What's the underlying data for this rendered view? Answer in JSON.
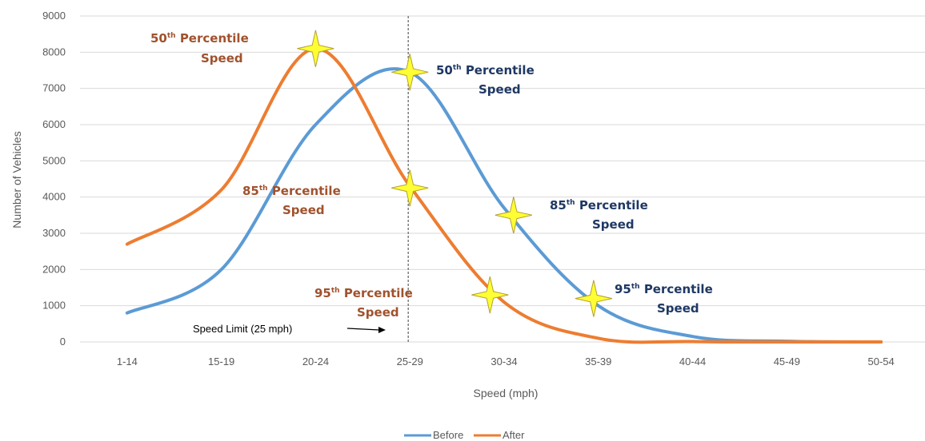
{
  "chart_data": {
    "type": "line",
    "title": "",
    "xlabel": "Speed (mph)",
    "ylabel": "Number of Vehicles",
    "categories": [
      "1-14",
      "15-19",
      "20-24",
      "25-29",
      "30-34",
      "35-39",
      "40-44",
      "45-49",
      "50-54"
    ],
    "ylim": [
      0,
      9000
    ],
    "yticks": [
      0,
      1000,
      2000,
      3000,
      4000,
      5000,
      6000,
      7000,
      8000,
      9000
    ],
    "grid": true,
    "legend": "bottom",
    "series": [
      {
        "name": "Before",
        "color": "#5b9bd5",
        "values": [
          800,
          2000,
          6000,
          7450,
          3700,
          1000,
          150,
          20,
          0
        ]
      },
      {
        "name": "After",
        "color": "#ed7d31",
        "values": [
          2700,
          4200,
          8100,
          4300,
          1100,
          100,
          10,
          0,
          0
        ]
      }
    ],
    "reference_line": {
      "label": "Speed Limit (25 mph)",
      "category": "25-29",
      "style": "dashed",
      "color": "#7f7f7f"
    },
    "markers": [
      {
        "series": "After",
        "label": "50th Percentile Speed",
        "x": 2.0,
        "y": 8100
      },
      {
        "series": "After",
        "label": "85th Percentile Speed",
        "x": 3.0,
        "y": 4250
      },
      {
        "series": "After",
        "label": "95th Percentile Speed",
        "x": 3.85,
        "y": 1300
      },
      {
        "series": "Before",
        "label": "50th Percentile Speed",
        "x": 3.0,
        "y": 7450
      },
      {
        "series": "Before",
        "label": "85th Percentile Speed",
        "x": 4.1,
        "y": 3500
      },
      {
        "series": "Before",
        "label": "95th Percentile Speed",
        "x": 4.95,
        "y": 1200
      }
    ],
    "annotations": [
      {
        "series": "After",
        "prefix": "50",
        "sup": "th",
        "line1": " Percentile",
        "line2": "Speed"
      },
      {
        "series": "After",
        "prefix": "85",
        "sup": "th",
        "line1": " Percentile",
        "line2": "Speed"
      },
      {
        "series": "After",
        "prefix": "95",
        "sup": "th",
        "line1": " Percentile",
        "line2": "Speed"
      },
      {
        "series": "Before",
        "prefix": "50",
        "sup": "th",
        "line1": " Percentile",
        "line2": "Speed"
      },
      {
        "series": "Before",
        "prefix": "85",
        "sup": "th",
        "line1": " Percentile",
        "line2": "Speed"
      },
      {
        "series": "Before",
        "prefix": "95",
        "sup": "th",
        "line1": " Percentile",
        "line2": "Speed"
      }
    ],
    "marker_color": "#ffff33"
  }
}
